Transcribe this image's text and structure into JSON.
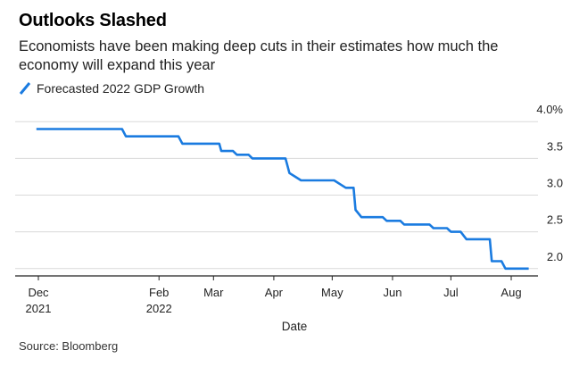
{
  "chart_data": {
    "type": "line",
    "title": "Outlooks Slashed",
    "subtitle": "Economists have been making deep cuts in their estimates how much the economy will expand this year",
    "xlabel": "Date",
    "ylabel": "",
    "ylim": [
      1.9,
      4.1
    ],
    "y_ticks": [
      {
        "value": 4.0,
        "label": "4.0%"
      },
      {
        "value": 3.5,
        "label": "3.5"
      },
      {
        "value": 3.0,
        "label": "3.0"
      },
      {
        "value": 2.5,
        "label": "2.5"
      },
      {
        "value": 2.0,
        "label": "2.0"
      }
    ],
    "x_ticks": [
      {
        "date": "2021-12-01",
        "label": "Dec",
        "label2": "2021"
      },
      {
        "date": "2022-02-01",
        "label": "Feb",
        "label2": "2022"
      },
      {
        "date": "2022-03-01",
        "label": "Mar",
        "label2": ""
      },
      {
        "date": "2022-04-01",
        "label": "Apr",
        "label2": ""
      },
      {
        "date": "2022-05-01",
        "label": "May",
        "label2": ""
      },
      {
        "date": "2022-06-01",
        "label": "Jun",
        "label2": ""
      },
      {
        "date": "2022-07-01",
        "label": "Jul",
        "label2": ""
      },
      {
        "date": "2022-08-01",
        "label": "Aug",
        "label2": ""
      }
    ],
    "grid": true,
    "legend_position": "top-left",
    "series": [
      {
        "name": "Forecasted 2022 GDP Growth",
        "color": "#1a7be0",
        "points": [
          [
            "2021-11-30",
            3.9
          ],
          [
            "2022-01-13",
            3.9
          ],
          [
            "2022-01-15",
            3.8
          ],
          [
            "2022-02-11",
            3.8
          ],
          [
            "2022-02-13",
            3.7
          ],
          [
            "2022-03-04",
            3.7
          ],
          [
            "2022-03-05",
            3.6
          ],
          [
            "2022-03-11",
            3.6
          ],
          [
            "2022-03-13",
            3.55
          ],
          [
            "2022-03-19",
            3.55
          ],
          [
            "2022-03-21",
            3.5
          ],
          [
            "2022-04-07",
            3.5
          ],
          [
            "2022-04-08",
            3.4
          ],
          [
            "2022-04-09",
            3.3
          ],
          [
            "2022-04-12",
            3.25
          ],
          [
            "2022-04-15",
            3.2
          ],
          [
            "2022-05-02",
            3.2
          ],
          [
            "2022-05-05",
            3.15
          ],
          [
            "2022-05-08",
            3.1
          ],
          [
            "2022-05-12",
            3.1
          ],
          [
            "2022-05-13",
            2.8
          ],
          [
            "2022-05-16",
            2.7
          ],
          [
            "2022-05-27",
            2.7
          ],
          [
            "2022-05-29",
            2.65
          ],
          [
            "2022-06-05",
            2.65
          ],
          [
            "2022-06-07",
            2.6
          ],
          [
            "2022-06-20",
            2.6
          ],
          [
            "2022-06-22",
            2.55
          ],
          [
            "2022-06-29",
            2.55
          ],
          [
            "2022-07-01",
            2.5
          ],
          [
            "2022-07-06",
            2.5
          ],
          [
            "2022-07-09",
            2.4
          ],
          [
            "2022-07-21",
            2.4
          ],
          [
            "2022-07-22",
            2.1
          ],
          [
            "2022-07-27",
            2.1
          ],
          [
            "2022-07-29",
            2.0
          ],
          [
            "2022-08-10",
            2.0
          ]
        ]
      }
    ]
  },
  "source": "Source: Bloomberg"
}
